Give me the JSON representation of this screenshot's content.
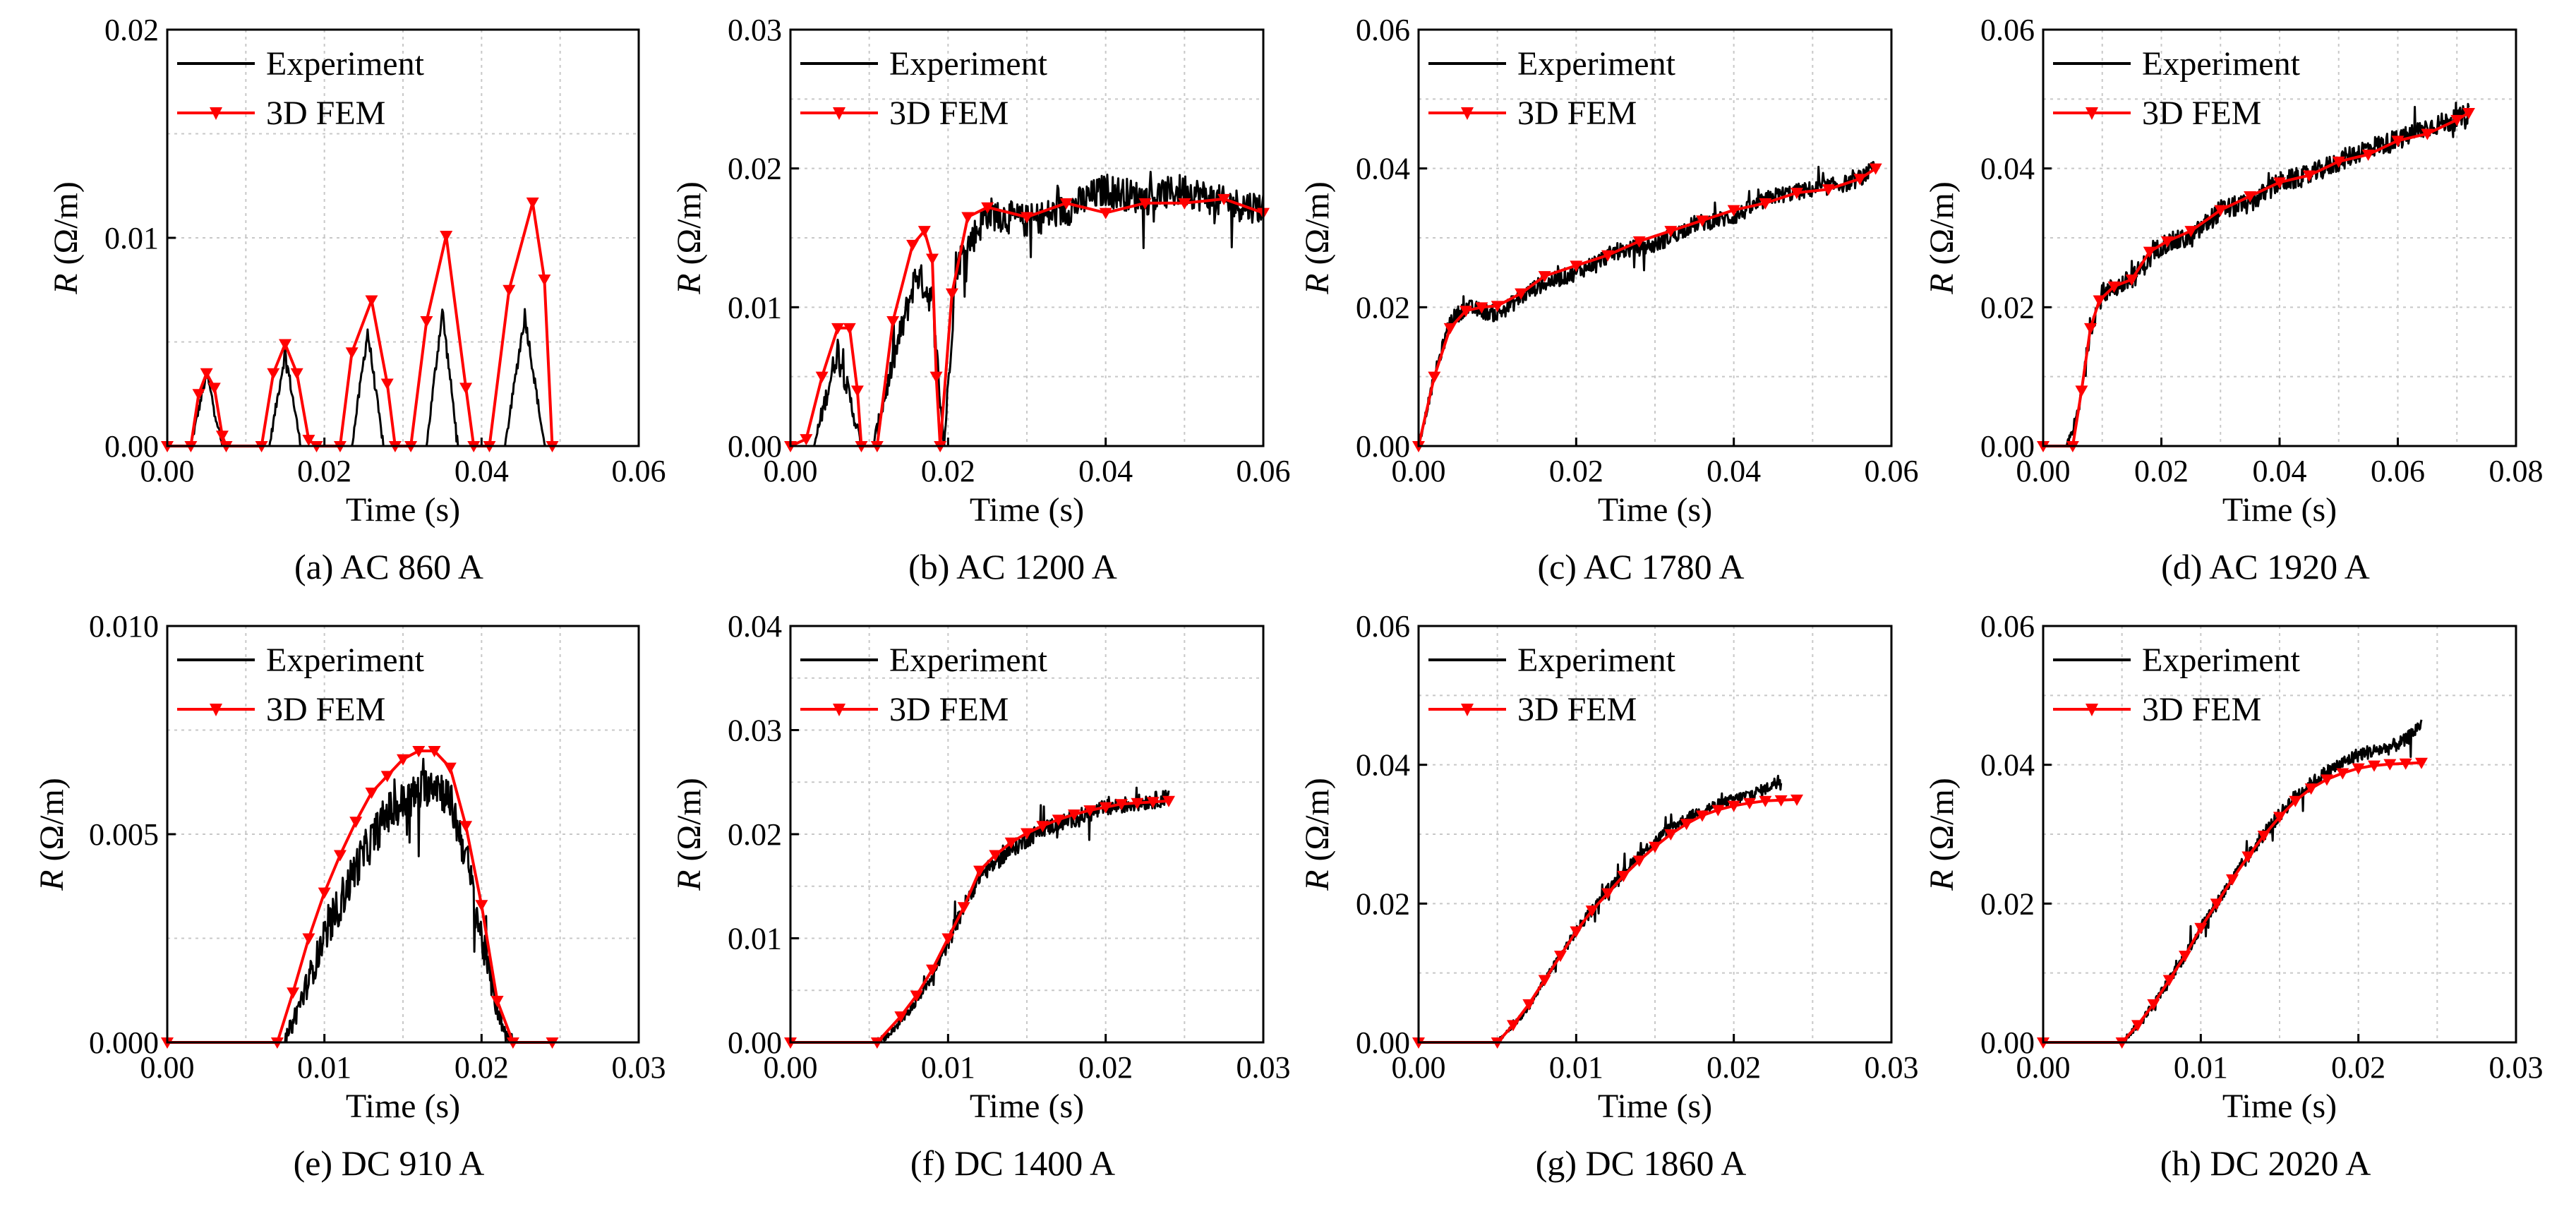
{
  "figure": {
    "legend": {
      "experiment": "Experiment",
      "fem": "3D FEM"
    },
    "colors": {
      "experiment": "#000000",
      "fem": "#ff0000",
      "grid": "#c8c8c8"
    },
    "icons": {
      "fem_marker": "down-triangle-marker"
    }
  },
  "chart_data": [
    {
      "type": "line",
      "caption": "(a) AC 860 A",
      "xlabel": "Time (s)",
      "ylabel_italic": "R",
      "ylabel_unit": " (Ω/m)",
      "xlim": [
        0,
        0.06
      ],
      "ylim": [
        0,
        0.02
      ],
      "xticks": [
        "0.00",
        "0.02",
        "0.04",
        "0.06"
      ],
      "yticks": [
        "0.00",
        "0.01",
        "0.02"
      ],
      "legend_position": "top-left",
      "series": [
        {
          "name": "Experiment",
          "noise": 0.0004,
          "x": [
            0,
            0.003,
            0.005,
            0.007,
            0.009,
            0.013,
            0.015,
            0.017,
            0.019,
            0.0235,
            0.0255,
            0.0275,
            0.0295,
            0.033,
            0.035,
            0.037,
            0.039,
            0.043,
            0.0455,
            0.048,
            0.049,
            0.06
          ],
          "y": [
            0,
            0,
            0.0035,
            0,
            0,
            0,
            0.0045,
            0,
            0,
            0,
            0.0055,
            0,
            0,
            0,
            0.0065,
            0,
            0,
            0,
            0.0063,
            0,
            0,
            0
          ]
        },
        {
          "name": "3D FEM",
          "x": [
            0,
            0.003,
            0.004,
            0.005,
            0.006,
            0.007,
            0.0075,
            0.012,
            0.0135,
            0.015,
            0.0165,
            0.018,
            0.019,
            0.022,
            0.0235,
            0.026,
            0.028,
            0.029,
            0.031,
            0.033,
            0.0355,
            0.038,
            0.039,
            0.041,
            0.0435,
            0.0465,
            0.048,
            0.049
          ],
          "y": [
            0,
            0,
            0.0025,
            0.0035,
            0.0028,
            0.0005,
            0,
            0,
            0.0035,
            0.0049,
            0.0035,
            0.0003,
            0,
            0,
            0.0045,
            0.007,
            0.003,
            0,
            0,
            0.006,
            0.0101,
            0.0028,
            0,
            0,
            0.0075,
            0.0117,
            0.008,
            0
          ]
        }
      ]
    },
    {
      "type": "line",
      "caption": "(b) AC 1200 A",
      "xlabel": "Time (s)",
      "ylabel_italic": "R",
      "ylabel_unit": " (Ω/m)",
      "xlim": [
        0,
        0.06
      ],
      "ylim": [
        0,
        0.03
      ],
      "xticks": [
        "0.00",
        "0.02",
        "0.04",
        "0.06"
      ],
      "yticks": [
        "0.00",
        "0.01",
        "0.02",
        "0.03"
      ],
      "legend_position": "top-left",
      "series": [
        {
          "name": "Experiment",
          "noise": 0.0012,
          "x": [
            0,
            0.003,
            0.006,
            0.009,
            0.0105,
            0.013,
            0.016,
            0.018,
            0.0195,
            0.021,
            0.025,
            0.03,
            0.035,
            0.04,
            0.045,
            0.05,
            0.055,
            0.06
          ],
          "y": [
            0,
            0,
            0.007,
            0,
            0,
            0.006,
            0.0125,
            0.0105,
            0,
            0.013,
            0.0168,
            0.0162,
            0.017,
            0.0185,
            0.0178,
            0.0185,
            0.0175,
            0.0172
          ]
        },
        {
          "name": "3D FEM",
          "x": [
            0,
            0.002,
            0.004,
            0.006,
            0.0075,
            0.0085,
            0.009,
            0.011,
            0.013,
            0.0155,
            0.017,
            0.018,
            0.0185,
            0.019,
            0.0205,
            0.0225,
            0.025,
            0.03,
            0.035,
            0.04,
            0.045,
            0.05,
            0.055,
            0.06
          ],
          "y": [
            0,
            0.0005,
            0.005,
            0.0085,
            0.0085,
            0.004,
            0,
            0,
            0.009,
            0.0145,
            0.0155,
            0.0135,
            0.005,
            0,
            0.011,
            0.0165,
            0.0172,
            0.0165,
            0.0175,
            0.0168,
            0.0175,
            0.0175,
            0.0178,
            0.0168
          ]
        }
      ]
    },
    {
      "type": "line",
      "caption": "(c) AC 1780 A",
      "xlabel": "Time (s)",
      "ylabel_italic": "R",
      "ylabel_unit": " (Ω/m)",
      "xlim": [
        0,
        0.06
      ],
      "ylim": [
        0,
        0.06
      ],
      "xticks": [
        "0.00",
        "0.02",
        "0.04",
        "0.06"
      ],
      "yticks": [
        "0.00",
        "0.02",
        "0.04",
        "0.06"
      ],
      "legend_position": "top-left",
      "series": [
        {
          "name": "Experiment",
          "noise": 0.0012,
          "x": [
            0,
            0.002,
            0.004,
            0.006,
            0.01,
            0.015,
            0.02,
            0.025,
            0.03,
            0.035,
            0.04,
            0.045,
            0.05,
            0.055,
            0.058
          ],
          "y": [
            0,
            0.01,
            0.018,
            0.02,
            0.019,
            0.023,
            0.025,
            0.028,
            0.029,
            0.032,
            0.033,
            0.036,
            0.037,
            0.038,
            0.04
          ]
        },
        {
          "name": "3D FEM",
          "x": [
            0,
            0.002,
            0.004,
            0.006,
            0.008,
            0.01,
            0.013,
            0.016,
            0.02,
            0.024,
            0.028,
            0.032,
            0.036,
            0.04,
            0.044,
            0.048,
            0.052,
            0.056,
            0.058
          ],
          "y": [
            0,
            0.01,
            0.017,
            0.0195,
            0.02,
            0.0202,
            0.022,
            0.0245,
            0.026,
            0.0275,
            0.0295,
            0.031,
            0.0325,
            0.034,
            0.035,
            0.0365,
            0.037,
            0.0385,
            0.04
          ]
        }
      ]
    },
    {
      "type": "line",
      "caption": "(d) AC 1920 A",
      "xlabel": "Time (s)",
      "ylabel_italic": "R",
      "ylabel_unit": " (Ω/m)",
      "xlim": [
        0,
        0.08
      ],
      "ylim": [
        0,
        0.06
      ],
      "xticks": [
        "0.00",
        "0.02",
        "0.04",
        "0.06",
        "0.08"
      ],
      "yticks": [
        "0.00",
        "0.02",
        "0.04",
        "0.06"
      ],
      "legend_position": "top-left",
      "series": [
        {
          "name": "Experiment",
          "noise": 0.0015,
          "x": [
            0,
            0.004,
            0.006,
            0.008,
            0.01,
            0.015,
            0.02,
            0.025,
            0.03,
            0.035,
            0.04,
            0.045,
            0.05,
            0.055,
            0.06,
            0.065,
            0.07,
            0.072
          ],
          "y": [
            0,
            0,
            0.005,
            0.017,
            0.022,
            0.024,
            0.029,
            0.03,
            0.034,
            0.035,
            0.038,
            0.039,
            0.041,
            0.043,
            0.044,
            0.046,
            0.047,
            0.048
          ]
        },
        {
          "name": "3D FEM",
          "x": [
            0,
            0.005,
            0.0065,
            0.008,
            0.0095,
            0.012,
            0.015,
            0.018,
            0.021,
            0.025,
            0.03,
            0.035,
            0.04,
            0.045,
            0.05,
            0.055,
            0.06,
            0.065,
            0.07,
            0.072
          ],
          "y": [
            0,
            0,
            0.008,
            0.017,
            0.021,
            0.023,
            0.024,
            0.028,
            0.0295,
            0.031,
            0.034,
            0.036,
            0.038,
            0.039,
            0.041,
            0.042,
            0.044,
            0.045,
            0.047,
            0.048
          ]
        }
      ]
    },
    {
      "type": "line",
      "caption": "(e) DC 910 A",
      "xlabel": "Time (s)",
      "ylabel_italic": "R",
      "ylabel_unit": " (Ω/m)",
      "xlim": [
        0,
        0.03
      ],
      "ylim": [
        0,
        0.01
      ],
      "xticks": [
        "0.00",
        "0.01",
        "0.02",
        "0.03"
      ],
      "yticks": [
        "0.000",
        "0.005",
        "0.010"
      ],
      "legend_position": "top-left",
      "series": [
        {
          "name": "Experiment",
          "noise": 0.0005,
          "x": [
            0,
            0.0075,
            0.008,
            0.009,
            0.01,
            0.012,
            0.014,
            0.016,
            0.017,
            0.018,
            0.019,
            0.02,
            0.021,
            0.0215,
            0.022,
            0.0225,
            0.025
          ],
          "y": [
            0,
            0,
            0.0005,
            0.0015,
            0.0025,
            0.0042,
            0.0055,
            0.006,
            0.0063,
            0.0058,
            0.0045,
            0.0025,
            0.0008,
            0.0002,
            0,
            0,
            0
          ]
        },
        {
          "name": "3D FEM",
          "x": [
            0,
            0.007,
            0.008,
            0.009,
            0.01,
            0.011,
            0.012,
            0.013,
            0.014,
            0.015,
            0.016,
            0.017,
            0.018,
            0.019,
            0.02,
            0.021,
            0.022,
            0.0245
          ],
          "y": [
            0,
            0,
            0.0012,
            0.0025,
            0.0036,
            0.0045,
            0.0053,
            0.006,
            0.0064,
            0.0068,
            0.007,
            0.007,
            0.0066,
            0.0052,
            0.0033,
            0.001,
            0,
            0
          ]
        }
      ]
    },
    {
      "type": "line",
      "caption": "(f) DC 1400 A",
      "xlabel": "Time (s)",
      "ylabel_italic": "R",
      "ylabel_unit": " (Ω/m)",
      "xlim": [
        0,
        0.03
      ],
      "ylim": [
        0,
        0.04
      ],
      "xticks": [
        "0.00",
        "0.01",
        "0.02",
        "0.03"
      ],
      "yticks": [
        "0.00",
        "0.01",
        "0.02",
        "0.03",
        "0.04"
      ],
      "legend_position": "top-left",
      "series": [
        {
          "name": "Experiment",
          "noise": 0.0008,
          "x": [
            0,
            0.0055,
            0.006,
            0.007,
            0.008,
            0.009,
            0.01,
            0.011,
            0.012,
            0.014,
            0.016,
            0.018,
            0.02,
            0.022,
            0.024
          ],
          "y": [
            0,
            0,
            0.0005,
            0.002,
            0.004,
            0.0065,
            0.0095,
            0.013,
            0.016,
            0.0185,
            0.0205,
            0.0215,
            0.0225,
            0.023,
            0.0235
          ]
        },
        {
          "name": "3D FEM",
          "x": [
            0,
            0.0055,
            0.007,
            0.008,
            0.009,
            0.01,
            0.011,
            0.012,
            0.013,
            0.014,
            0.015,
            0.016,
            0.017,
            0.018,
            0.019,
            0.02,
            0.021,
            0.022,
            0.023,
            0.024
          ],
          "y": [
            0,
            0,
            0.0025,
            0.0045,
            0.007,
            0.01,
            0.013,
            0.0165,
            0.018,
            0.0192,
            0.0201,
            0.0208,
            0.0214,
            0.0219,
            0.0223,
            0.0226,
            0.0229,
            0.023,
            0.0231,
            0.0232
          ]
        }
      ]
    },
    {
      "type": "line",
      "caption": "(g) DC 1860 A",
      "xlabel": "Time (s)",
      "ylabel_italic": "R",
      "ylabel_unit": " (Ω/m)",
      "xlim": [
        0,
        0.03
      ],
      "ylim": [
        0,
        0.06
      ],
      "xticks": [
        "0.00",
        "0.01",
        "0.02",
        "0.03"
      ],
      "yticks": [
        "0.00",
        "0.02",
        "0.04",
        "0.06"
      ],
      "legend_position": "top-left",
      "series": [
        {
          "name": "Experiment",
          "noise": 0.0008,
          "x": [
            0,
            0.005,
            0.006,
            0.007,
            0.008,
            0.009,
            0.01,
            0.012,
            0.014,
            0.016,
            0.018,
            0.02,
            0.022,
            0.023
          ],
          "y": [
            0,
            0,
            0.0025,
            0.005,
            0.009,
            0.0125,
            0.016,
            0.022,
            0.027,
            0.031,
            0.0335,
            0.035,
            0.0365,
            0.038
          ]
        },
        {
          "name": "3D FEM",
          "x": [
            0,
            0.005,
            0.006,
            0.007,
            0.008,
            0.009,
            0.01,
            0.011,
            0.012,
            0.013,
            0.014,
            0.015,
            0.016,
            0.017,
            0.018,
            0.019,
            0.02,
            0.021,
            0.022,
            0.023,
            0.024
          ],
          "y": [
            0,
            0,
            0.0025,
            0.0055,
            0.009,
            0.0125,
            0.016,
            0.019,
            0.0215,
            0.024,
            0.0262,
            0.0282,
            0.03,
            0.0315,
            0.0327,
            0.0335,
            0.0341,
            0.0345,
            0.0348,
            0.0349,
            0.035
          ]
        }
      ]
    },
    {
      "type": "line",
      "caption": "(h) DC 2020 A",
      "xlabel": "Time (s)",
      "ylabel_italic": "R",
      "ylabel_unit": " (Ω/m)",
      "xlim": [
        0,
        0.03
      ],
      "ylim": [
        0,
        0.06
      ],
      "xticks": [
        "0.00",
        "0.01",
        "0.02",
        "0.03"
      ],
      "yticks": [
        "0.00",
        "0.02",
        "0.04",
        "0.06"
      ],
      "legend_position": "top-left",
      "series": [
        {
          "name": "Experiment",
          "noise": 0.001,
          "x": [
            0,
            0.005,
            0.006,
            0.007,
            0.008,
            0.009,
            0.01,
            0.012,
            0.014,
            0.016,
            0.018,
            0.02,
            0.022,
            0.023,
            0.024
          ],
          "y": [
            0,
            0,
            0.0025,
            0.0055,
            0.009,
            0.0125,
            0.0165,
            0.0235,
            0.03,
            0.0355,
            0.039,
            0.0415,
            0.0425,
            0.0435,
            0.046
          ]
        },
        {
          "name": "3D FEM",
          "x": [
            0,
            0.005,
            0.006,
            0.007,
            0.008,
            0.009,
            0.01,
            0.011,
            0.012,
            0.013,
            0.014,
            0.015,
            0.016,
            0.017,
            0.018,
            0.019,
            0.02,
            0.021,
            0.022,
            0.023,
            0.024
          ],
          "y": [
            0,
            0,
            0.0025,
            0.0055,
            0.009,
            0.0125,
            0.0165,
            0.02,
            0.0235,
            0.0268,
            0.0298,
            0.0325,
            0.0348,
            0.0366,
            0.0379,
            0.0388,
            0.0395,
            0.0399,
            0.0401,
            0.0402,
            0.0403
          ]
        }
      ]
    }
  ]
}
